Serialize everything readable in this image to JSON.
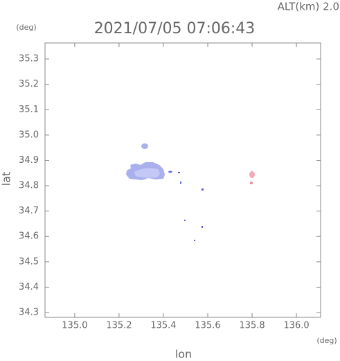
{
  "chart_data": {
    "type": "map",
    "title": "2021/07/05 07:06:43",
    "altitude_label": "ALT(km) 2.0",
    "x_label": "lon",
    "y_label": "lat",
    "x_unit": "(deg)",
    "y_unit": "(deg)",
    "xlim": [
      134.866,
      136.109
    ],
    "ylim": [
      34.281,
      35.363
    ],
    "xticks": [
      {
        "value": 135,
        "label": "135.0"
      },
      135.2,
      135.4,
      135.6,
      135.8,
      {
        "value": 136,
        "label": "136.0"
      }
    ],
    "yticks": [
      34.3,
      34.4,
      34.5,
      34.6,
      34.7,
      34.8,
      34.9,
      {
        "value": 35,
        "label": "35.0"
      },
      35.1,
      35.2,
      35.3
    ]
  }
}
